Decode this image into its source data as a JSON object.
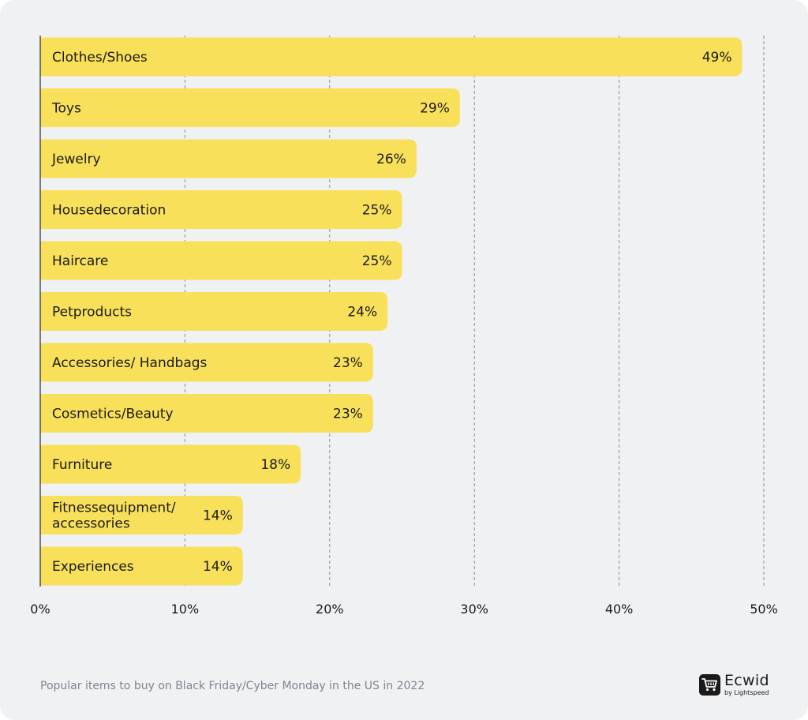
{
  "chart_data": {
    "type": "bar",
    "orientation": "horizontal",
    "categories": [
      "Clothes/Shoes",
      "Toys",
      "Jewelry",
      "Housedecoration",
      "Haircare",
      "Petproducts",
      "Accessories/ Handbags",
      "Cosmetics/Beauty",
      "Furniture",
      "Fitnessequipment/ accessories",
      "Experiences"
    ],
    "category_lines": [
      [
        "Clothes/Shoes"
      ],
      [
        "Toys"
      ],
      [
        "Jewelry"
      ],
      [
        "Housedecoration"
      ],
      [
        "Haircare"
      ],
      [
        "Petproducts"
      ],
      [
        "Accessories/ Handbags"
      ],
      [
        "Cosmetics/Beauty"
      ],
      [
        "Furniture"
      ],
      [
        "Fitnessequipment/",
        "accessories"
      ],
      [
        "Experiences"
      ]
    ],
    "values": [
      48.5,
      29,
      26,
      25,
      25,
      24,
      23,
      23,
      18,
      14,
      14
    ],
    "value_labels": [
      "49%",
      "29%",
      "26%",
      "25%",
      "25%",
      "24%",
      "23%",
      "23%",
      "18%",
      "14%",
      "14%"
    ],
    "xlim": [
      0,
      50
    ],
    "xticks": [
      0,
      10,
      20,
      30,
      40,
      50
    ],
    "xtick_labels": [
      "0%",
      "10%",
      "20%",
      "30%",
      "40%",
      "50%"
    ],
    "grid": "vertical dashed",
    "bar_color": "#f8e05a",
    "legend": "none"
  },
  "caption": "Popular items to buy on Black Friday/Cyber Monday in the US in 2022",
  "logo": {
    "name": "Ecwid",
    "sub": "by Lightspeed",
    "icon": "cart-icon"
  },
  "colors": {
    "background": "#f0f1f3",
    "bar": "#f8e05a",
    "text": "#1a1a1a",
    "caption": "#7e8590",
    "grid": "#8a8f98"
  }
}
